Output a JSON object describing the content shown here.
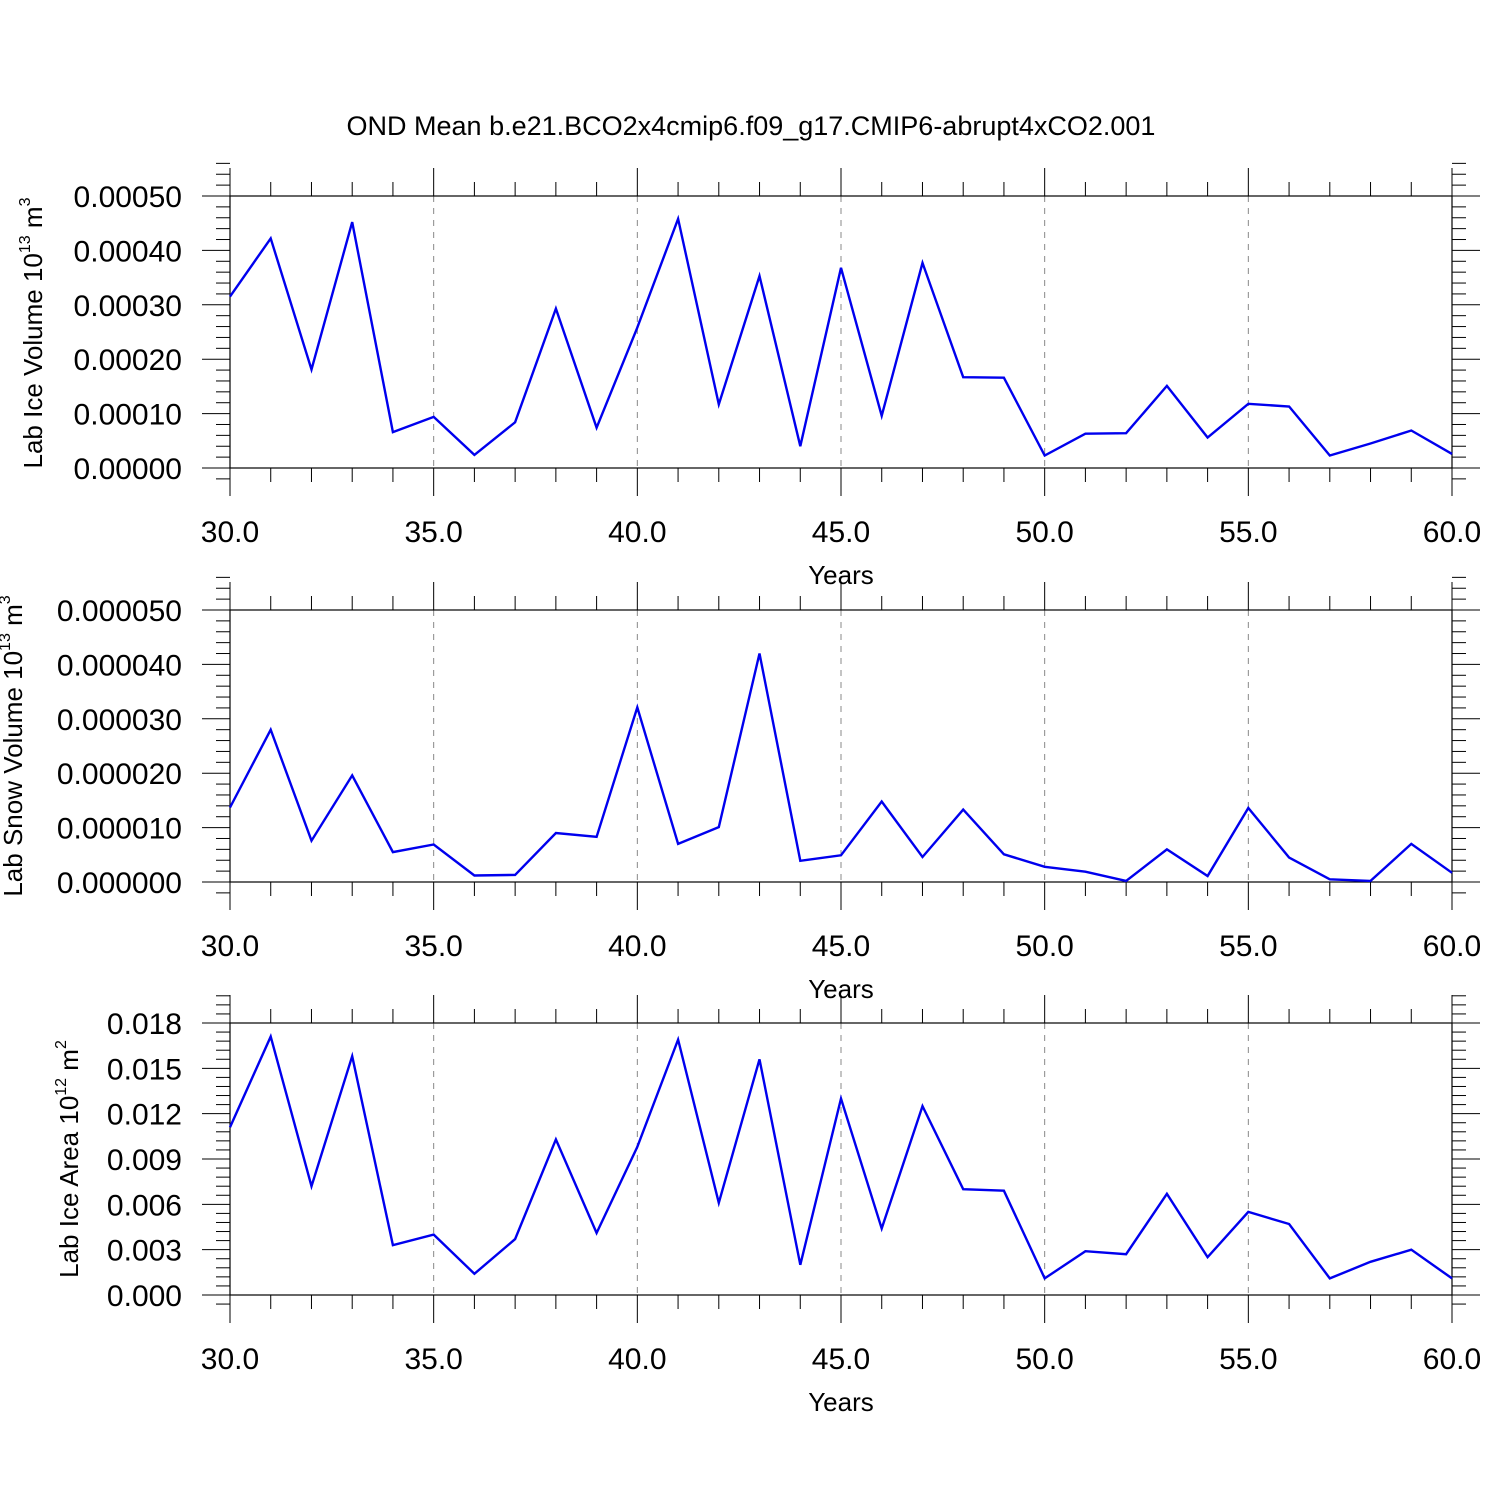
{
  "title": "OND Mean b.e21.BCO2x4cmip6.f09_g17.CMIP6-abrupt4xCO2.001",
  "colors": {
    "series": "#0000ee",
    "axis": "#000000",
    "grid": "#888888"
  },
  "chart_data": [
    {
      "type": "line",
      "title": "",
      "xlabel": "Years",
      "ylabel": {
        "base": "Lab Ice Volume 10",
        "exp": "13",
        "unit": " m",
        "unit_exp": "3"
      },
      "xlim": [
        30,
        60
      ],
      "ylim": [
        0,
        0.0005
      ],
      "x_ticks": [
        30,
        35,
        40,
        45,
        50,
        55,
        60
      ],
      "x_tick_labels": [
        "30.0",
        "35.0",
        "40.0",
        "45.0",
        "50.0",
        "55.0",
        "60.0"
      ],
      "y_ticks": [
        0,
        0.0001,
        0.0002,
        0.0003,
        0.0004,
        0.0005
      ],
      "y_tick_labels": [
        "0.00000",
        "0.00010",
        "0.00020",
        "0.00030",
        "0.00040",
        "0.00050"
      ],
      "grid": "vertical-dashed",
      "series": [
        {
          "x": [
            30,
            31,
            32,
            33,
            34,
            35,
            36,
            37,
            38,
            39,
            40,
            41,
            42,
            43,
            44,
            45,
            46,
            47,
            48,
            49,
            50,
            51,
            52,
            53,
            54,
            55,
            56,
            57,
            58,
            59,
            60
          ],
          "values": [
            0.000315,
            0.000422,
            0.000181,
            0.000452,
            6.6e-05,
            9.4e-05,
            2.4e-05,
            8.4e-05,
            0.000293,
            7.4e-05,
            0.000258,
            0.000458,
            0.000117,
            0.000353,
            4e-05,
            0.000368,
            9.6e-05,
            0.000377,
            0.000167,
            0.000166,
            2.3e-05,
            6.3e-05,
            6.4e-05,
            0.000151,
            5.6e-05,
            0.000118,
            0.000113,
            2.3e-05,
            4.5e-05,
            6.9e-05,
            2.6e-05
          ]
        }
      ]
    },
    {
      "type": "line",
      "title": "",
      "xlabel": "Years",
      "ylabel": {
        "base": "Lab Snow Volume 10",
        "exp": "13",
        "unit": " m",
        "unit_exp": "3"
      },
      "xlim": [
        30,
        60
      ],
      "ylim": [
        0,
        5e-05
      ],
      "x_ticks": [
        30,
        35,
        40,
        45,
        50,
        55,
        60
      ],
      "x_tick_labels": [
        "30.0",
        "35.0",
        "40.0",
        "45.0",
        "50.0",
        "55.0",
        "60.0"
      ],
      "y_ticks": [
        0,
        1e-05,
        2e-05,
        3e-05,
        4e-05,
        5e-05
      ],
      "y_tick_labels": [
        "0.000000",
        "0.000010",
        "0.000020",
        "0.000030",
        "0.000040",
        "0.000050"
      ],
      "grid": "vertical-dashed",
      "series": [
        {
          "x": [
            30,
            31,
            32,
            33,
            34,
            35,
            36,
            37,
            38,
            39,
            40,
            41,
            42,
            43,
            44,
            45,
            46,
            47,
            48,
            49,
            50,
            51,
            52,
            53,
            54,
            55,
            56,
            57,
            58,
            59,
            60
          ],
          "values": [
            1.37e-05,
            2.8e-05,
            7.6e-06,
            1.96e-05,
            5.5e-06,
            6.9e-06,
            1.2e-06,
            1.3e-06,
            9e-06,
            8.3e-06,
            3.21e-05,
            7e-06,
            1.01e-05,
            4.2e-05,
            3.9e-06,
            4.9e-06,
            1.48e-05,
            4.6e-06,
            1.33e-05,
            5.1e-06,
            2.8e-06,
            1.9e-06,
            2e-07,
            6e-06,
            1.1e-06,
            1.36e-05,
            4.5e-06,
            5e-07,
            2e-07,
            7e-06,
            1.7e-06
          ]
        }
      ]
    },
    {
      "type": "line",
      "title": "",
      "xlabel": "Years",
      "ylabel": {
        "base": "Lab Ice Area 10",
        "exp": "12",
        "unit": " m",
        "unit_exp": "2"
      },
      "xlim": [
        30,
        60
      ],
      "ylim": [
        0,
        0.018
      ],
      "x_ticks": [
        30,
        35,
        40,
        45,
        50,
        55,
        60
      ],
      "x_tick_labels": [
        "30.0",
        "35.0",
        "40.0",
        "45.0",
        "50.0",
        "55.0",
        "60.0"
      ],
      "y_ticks": [
        0,
        0.003,
        0.006,
        0.009,
        0.012,
        0.015,
        0.018
      ],
      "y_tick_labels": [
        "0.000",
        "0.003",
        "0.006",
        "0.009",
        "0.012",
        "0.015",
        "0.018"
      ],
      "grid": "vertical-dashed",
      "series": [
        {
          "x": [
            30,
            31,
            32,
            33,
            34,
            35,
            36,
            37,
            38,
            39,
            40,
            41,
            42,
            43,
            44,
            45,
            46,
            47,
            48,
            49,
            50,
            51,
            52,
            53,
            54,
            55,
            56,
            57,
            58,
            59,
            60
          ],
          "values": [
            0.0111,
            0.0171,
            0.0072,
            0.0158,
            0.0033,
            0.004,
            0.0014,
            0.0037,
            0.0103,
            0.0041,
            0.0098,
            0.0169,
            0.0061,
            0.0156,
            0.002,
            0.013,
            0.0044,
            0.0125,
            0.007,
            0.0069,
            0.0011,
            0.0029,
            0.0027,
            0.0067,
            0.0025,
            0.0055,
            0.0047,
            0.0011,
            0.0022,
            0.003,
            0.0011
          ]
        }
      ]
    }
  ]
}
